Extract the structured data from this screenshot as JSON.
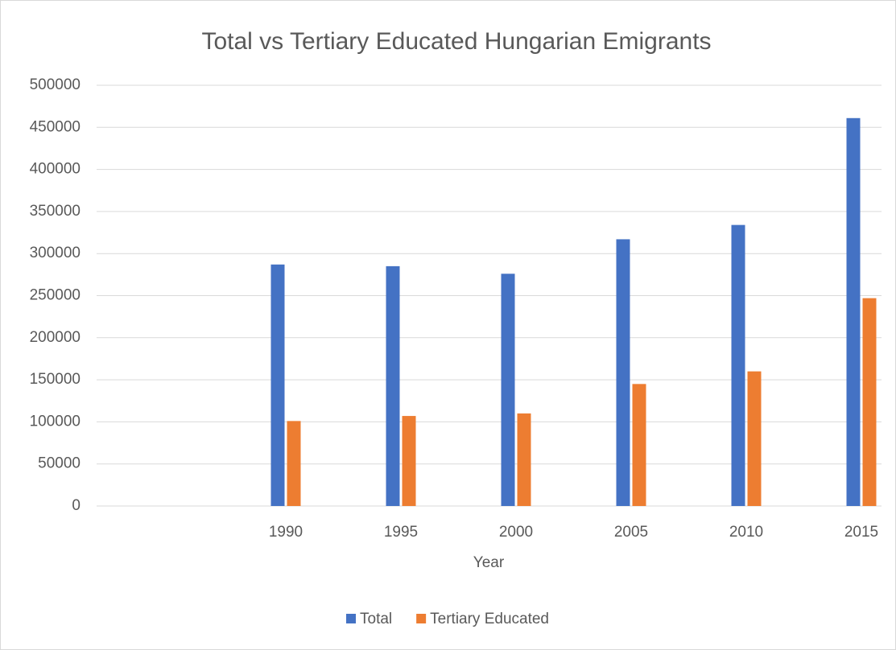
{
  "chart_data": {
    "type": "bar",
    "title": "Total vs Tertiary Educated Hungarian Emigrants",
    "x_label": "Year",
    "categories": [
      null,
      "1990",
      "1995",
      "2000",
      "2005",
      "2010",
      "2015"
    ],
    "series": [
      {
        "name": "Total",
        "color": "#4472c4",
        "values": [
          null,
          287000,
          285000,
          276000,
          317000,
          334000,
          461000
        ]
      },
      {
        "name": "Tertiary Educated",
        "color": "#ed7d31",
        "values": [
          null,
          101000,
          107000,
          110000,
          145000,
          160000,
          247000
        ]
      }
    ],
    "ylim": [
      0,
      500000
    ],
    "yticks": [
      0,
      50000,
      100000,
      150000,
      200000,
      250000,
      300000,
      350000,
      400000,
      450000,
      500000
    ],
    "grid": true,
    "legend": "bottom"
  }
}
